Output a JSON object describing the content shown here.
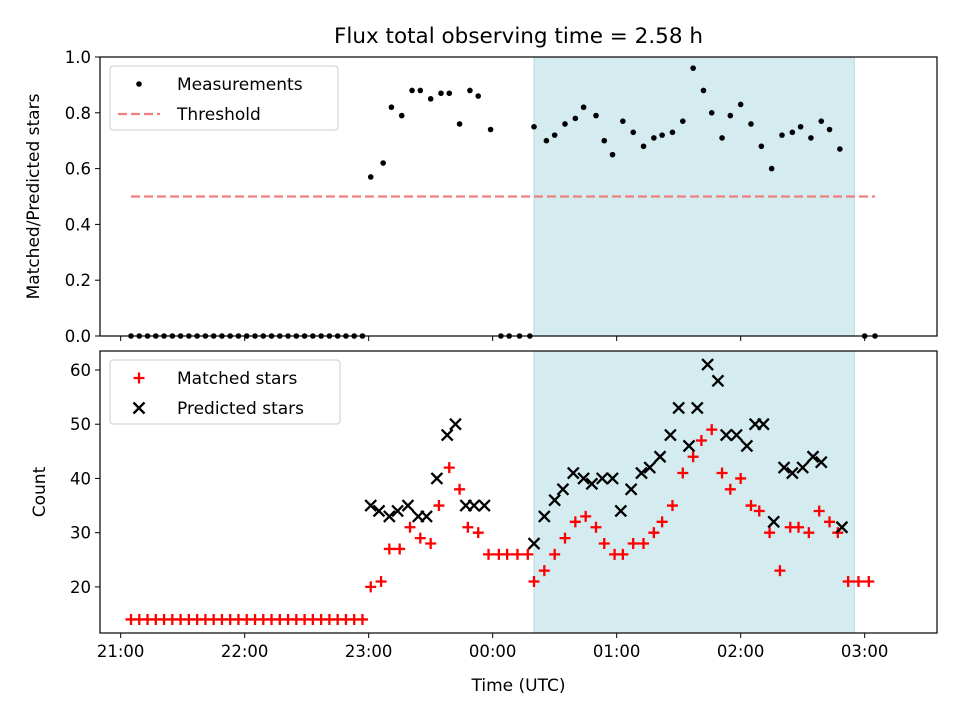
{
  "figure": {
    "title": "Flux total observing time = 2.58 h",
    "highlight_color": "#d4ebf0",
    "highlight_range": [
      "00:20",
      "02:55"
    ]
  },
  "chart_data": [
    {
      "type": "scatter",
      "panel": "top",
      "xlabel": "",
      "ylabel": "Matched/Predicted stars",
      "ylim": [
        0,
        1.0
      ],
      "yticks": [
        "0.0",
        "0.2",
        "0.4",
        "0.6",
        "0.8",
        "1.0"
      ],
      "grid": false,
      "legend_position": "top-left",
      "legend": [
        "Measurements",
        "Threshold"
      ],
      "threshold": {
        "name": "Threshold",
        "value": 0.5,
        "x_range": [
          "21:05",
          "03:05"
        ],
        "color": "#f08080",
        "style": "dashed"
      },
      "series": [
        {
          "name": "Measurements",
          "color": "#000000",
          "marker": "dot",
          "points": [
            [
              "21:05",
              0
            ],
            [
              "21:09",
              0
            ],
            [
              "21:13",
              0
            ],
            [
              "21:17",
              0
            ],
            [
              "21:21",
              0
            ],
            [
              "21:25",
              0
            ],
            [
              "21:29",
              0
            ],
            [
              "21:33",
              0
            ],
            [
              "21:37",
              0
            ],
            [
              "21:41",
              0
            ],
            [
              "21:45",
              0
            ],
            [
              "21:49",
              0
            ],
            [
              "21:53",
              0
            ],
            [
              "21:57",
              0
            ],
            [
              "22:01",
              0
            ],
            [
              "22:05",
              0
            ],
            [
              "22:09",
              0
            ],
            [
              "22:13",
              0
            ],
            [
              "22:17",
              0
            ],
            [
              "22:21",
              0
            ],
            [
              "22:25",
              0
            ],
            [
              "22:29",
              0
            ],
            [
              "22:33",
              0
            ],
            [
              "22:37",
              0
            ],
            [
              "22:41",
              0
            ],
            [
              "22:45",
              0
            ],
            [
              "22:49",
              0
            ],
            [
              "22:53",
              0
            ],
            [
              "22:57",
              0
            ],
            [
              "23:01",
              0.57
            ],
            [
              "23:07",
              0.62
            ],
            [
              "23:11",
              0.82
            ],
            [
              "23:16",
              0.79
            ],
            [
              "23:21",
              0.88
            ],
            [
              "23:25",
              0.88
            ],
            [
              "23:30",
              0.85
            ],
            [
              "23:35",
              0.87
            ],
            [
              "23:39",
              0.87
            ],
            [
              "23:44",
              0.76
            ],
            [
              "23:49",
              0.88
            ],
            [
              "23:53",
              0.86
            ],
            [
              "23:59",
              0.74
            ],
            [
              "00:04",
              0
            ],
            [
              "00:08",
              0
            ],
            [
              "00:13",
              0
            ],
            [
              "00:18",
              0
            ],
            [
              "00:20",
              0.75
            ],
            [
              "00:26",
              0.7
            ],
            [
              "00:30",
              0.72
            ],
            [
              "00:35",
              0.76
            ],
            [
              "00:40",
              0.78
            ],
            [
              "00:44",
              0.82
            ],
            [
              "00:50",
              0.79
            ],
            [
              "00:54",
              0.7
            ],
            [
              "00:58",
              0.65
            ],
            [
              "01:03",
              0.77
            ],
            [
              "01:08",
              0.73
            ],
            [
              "01:13",
              0.68
            ],
            [
              "01:18",
              0.71
            ],
            [
              "01:22",
              0.72
            ],
            [
              "01:27",
              0.73
            ],
            [
              "01:32",
              0.77
            ],
            [
              "01:37",
              0.96
            ],
            [
              "01:42",
              0.88
            ],
            [
              "01:46",
              0.8
            ],
            [
              "01:51",
              0.71
            ],
            [
              "01:55",
              0.79
            ],
            [
              "02:00",
              0.83
            ],
            [
              "02:05",
              0.76
            ],
            [
              "02:10",
              0.68
            ],
            [
              "02:15",
              0.6
            ],
            [
              "02:20",
              0.72
            ],
            [
              "02:25",
              0.73
            ],
            [
              "02:29",
              0.75
            ],
            [
              "02:34",
              0.71
            ],
            [
              "02:39",
              0.77
            ],
            [
              "02:43",
              0.74
            ],
            [
              "02:48",
              0.67
            ],
            [
              "03:00",
              0
            ],
            [
              "03:05",
              0
            ]
          ]
        }
      ]
    },
    {
      "type": "scatter",
      "panel": "bottom",
      "xlabel": "Time (UTC)",
      "ylabel": "Count",
      "xlim": [
        "20:50",
        "03:35"
      ],
      "ylim": [
        11.5,
        63.5
      ],
      "xticks": [
        "21:00",
        "22:00",
        "23:00",
        "00:00",
        "01:00",
        "02:00",
        "03:00"
      ],
      "yticks": [
        "20",
        "30",
        "40",
        "50",
        "60"
      ],
      "grid": false,
      "legend_position": "top-left",
      "legend": [
        "Matched stars",
        "Predicted stars"
      ],
      "series": [
        {
          "name": "Matched stars",
          "color": "#ff0000",
          "marker": "plus",
          "points": [
            [
              "21:05",
              14
            ],
            [
              "21:09",
              14
            ],
            [
              "21:13",
              14
            ],
            [
              "21:17",
              14
            ],
            [
              "21:21",
              14
            ],
            [
              "21:25",
              14
            ],
            [
              "21:29",
              14
            ],
            [
              "21:33",
              14
            ],
            [
              "21:37",
              14
            ],
            [
              "21:41",
              14
            ],
            [
              "21:45",
              14
            ],
            [
              "21:49",
              14
            ],
            [
              "21:53",
              14
            ],
            [
              "21:57",
              14
            ],
            [
              "22:01",
              14
            ],
            [
              "22:05",
              14
            ],
            [
              "22:09",
              14
            ],
            [
              "22:13",
              14
            ],
            [
              "22:17",
              14
            ],
            [
              "22:21",
              14
            ],
            [
              "22:25",
              14
            ],
            [
              "22:29",
              14
            ],
            [
              "22:33",
              14
            ],
            [
              "22:37",
              14
            ],
            [
              "22:41",
              14
            ],
            [
              "22:45",
              14
            ],
            [
              "22:49",
              14
            ],
            [
              "22:53",
              14
            ],
            [
              "22:57",
              14
            ],
            [
              "23:01",
              20
            ],
            [
              "23:06",
              21
            ],
            [
              "23:10",
              27
            ],
            [
              "23:15",
              27
            ],
            [
              "23:20",
              31
            ],
            [
              "23:25",
              29
            ],
            [
              "23:30",
              28
            ],
            [
              "23:34",
              35
            ],
            [
              "23:39",
              42
            ],
            [
              "23:44",
              38
            ],
            [
              "23:48",
              31
            ],
            [
              "23:53",
              30
            ],
            [
              "23:58",
              26
            ],
            [
              "00:03",
              26
            ],
            [
              "00:07",
              26
            ],
            [
              "00:12",
              26
            ],
            [
              "00:17",
              26
            ],
            [
              "00:20",
              21
            ],
            [
              "00:25",
              23
            ],
            [
              "00:30",
              26
            ],
            [
              "00:35",
              29
            ],
            [
              "00:40",
              32
            ],
            [
              "00:45",
              33
            ],
            [
              "00:50",
              31
            ],
            [
              "00:54",
              28
            ],
            [
              "00:59",
              26
            ],
            [
              "01:03",
              26
            ],
            [
              "01:08",
              28
            ],
            [
              "01:13",
              28
            ],
            [
              "01:18",
              30
            ],
            [
              "01:22",
              32
            ],
            [
              "01:27",
              35
            ],
            [
              "01:32",
              41
            ],
            [
              "01:37",
              44
            ],
            [
              "01:41",
              47
            ],
            [
              "01:46",
              49
            ],
            [
              "01:51",
              41
            ],
            [
              "01:55",
              38
            ],
            [
              "02:00",
              40
            ],
            [
              "02:05",
              35
            ],
            [
              "02:09",
              34
            ],
            [
              "02:14",
              30
            ],
            [
              "02:19",
              23
            ],
            [
              "02:24",
              31
            ],
            [
              "02:28",
              31
            ],
            [
              "02:33",
              30
            ],
            [
              "02:38",
              34
            ],
            [
              "02:43",
              32
            ],
            [
              "02:47",
              30
            ],
            [
              "02:52",
              21
            ],
            [
              "02:57",
              21
            ],
            [
              "03:02",
              21
            ]
          ]
        },
        {
          "name": "Predicted stars",
          "color": "#000000",
          "marker": "x",
          "points": [
            [
              "23:01",
              35
            ],
            [
              "23:05",
              34
            ],
            [
              "23:10",
              33
            ],
            [
              "23:14",
              34
            ],
            [
              "23:19",
              35
            ],
            [
              "23:24",
              33
            ],
            [
              "23:28",
              33
            ],
            [
              "23:33",
              40
            ],
            [
              "23:38",
              48
            ],
            [
              "23:42",
              50
            ],
            [
              "23:47",
              35
            ],
            [
              "23:51",
              35
            ],
            [
              "23:56",
              35
            ],
            [
              "00:20",
              28
            ],
            [
              "00:25",
              33
            ],
            [
              "00:30",
              36
            ],
            [
              "00:34",
              38
            ],
            [
              "00:39",
              41
            ],
            [
              "00:44",
              40
            ],
            [
              "00:48",
              39
            ],
            [
              "00:53",
              40
            ],
            [
              "00:58",
              40
            ],
            [
              "01:02",
              34
            ],
            [
              "01:07",
              38
            ],
            [
              "01:12",
              41
            ],
            [
              "01:16",
              42
            ],
            [
              "01:21",
              44
            ],
            [
              "01:26",
              48
            ],
            [
              "01:30",
              53
            ],
            [
              "01:35",
              46
            ],
            [
              "01:39",
              53
            ],
            [
              "01:44",
              61
            ],
            [
              "01:49",
              58
            ],
            [
              "01:53",
              48
            ],
            [
              "01:58",
              48
            ],
            [
              "02:03",
              46
            ],
            [
              "02:07",
              50
            ],
            [
              "02:11",
              50
            ],
            [
              "02:16",
              32
            ],
            [
              "02:21",
              42
            ],
            [
              "02:25",
              41
            ],
            [
              "02:30",
              42
            ],
            [
              "02:35",
              44
            ],
            [
              "02:39",
              43
            ],
            [
              "02:49",
              31
            ]
          ]
        }
      ]
    }
  ]
}
